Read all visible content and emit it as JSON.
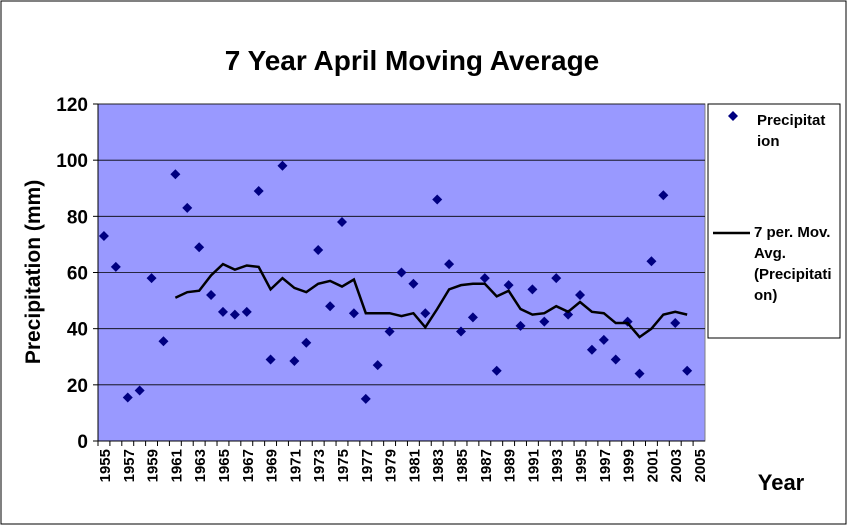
{
  "chart_data": {
    "type": "scatter_line",
    "title": "7 Year April Moving Average",
    "ylabel": "Precipitation (mm)",
    "xlabel": "Year",
    "categories": [
      "1955",
      null,
      "1957",
      null,
      "1959",
      null,
      "1961",
      null,
      "1963",
      null,
      "1965",
      null,
      "1967",
      null,
      "1969",
      null,
      "1971",
      null,
      "1973",
      null,
      "1975",
      null,
      "1977",
      null,
      "1979",
      null,
      "1981",
      null,
      "1983",
      null,
      "1985",
      null,
      "1987",
      null,
      "1989",
      null,
      "1991",
      null,
      "1993",
      null,
      "1995",
      null,
      "1997",
      null,
      "1999",
      null,
      "2001",
      null,
      "2003",
      null,
      "2005"
    ],
    "series": [
      {
        "name": "Precipitation",
        "color": "#000080",
        "marker": "diamond",
        "values": [
          73,
          62,
          15.5,
          18,
          58,
          35.5,
          95,
          83,
          69,
          52,
          46,
          45,
          46,
          89,
          29,
          98,
          28.5,
          35,
          68,
          48,
          78,
          45.5,
          15,
          27,
          39,
          60,
          56,
          45.5,
          86,
          63,
          39,
          44,
          58,
          25,
          55.5,
          41,
          54,
          42.5,
          58,
          45,
          52,
          32.5,
          36,
          29,
          42.5,
          24,
          64,
          87.5,
          42,
          25,
          null
        ]
      },
      {
        "name": "7 per. Mov. Avg. (Precipitation)",
        "color": "#000000",
        "marker": "line",
        "values": [
          null,
          null,
          null,
          null,
          null,
          null,
          51,
          53,
          53.5,
          59,
          63,
          61,
          62.5,
          62,
          54,
          58,
          54.5,
          53,
          56,
          57,
          55,
          57.5,
          45.5,
          45.5,
          45.5,
          44.5,
          45.5,
          40.5,
          47,
          54,
          55.5,
          56,
          56,
          51.5,
          53.5,
          47,
          45,
          45.5,
          48,
          46,
          49.5,
          46,
          45.5,
          42,
          42,
          37,
          40,
          45,
          46,
          45,
          null
        ]
      }
    ],
    "ylim": [
      0,
      120
    ],
    "yticks": [
      0,
      20,
      40,
      60,
      80,
      100,
      120
    ],
    "grid": true,
    "plot_background": "#9999ff",
    "legend": "right"
  }
}
